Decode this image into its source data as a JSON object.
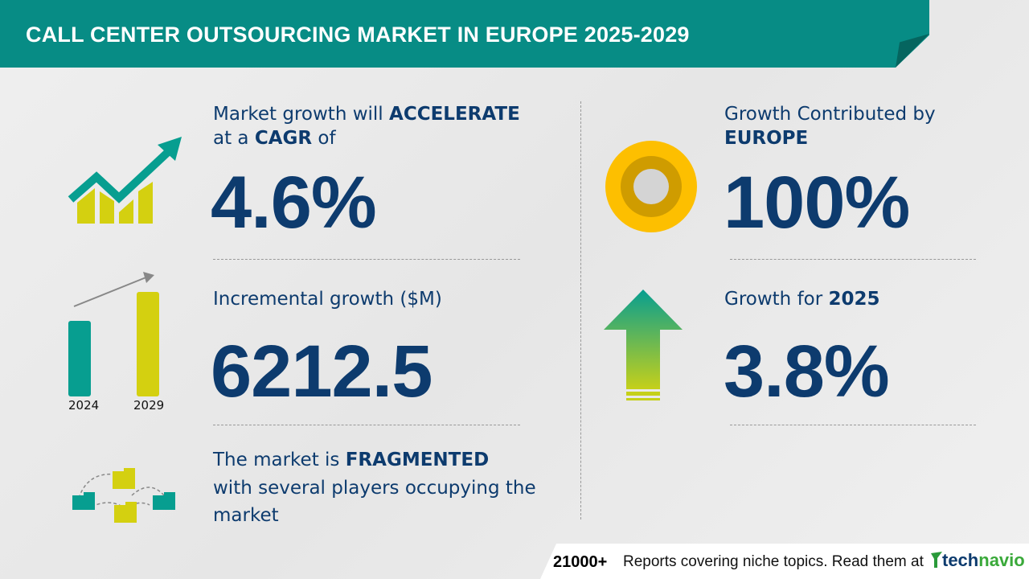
{
  "header": {
    "title": "CALL CENTER OUTSOURCING MARKET IN EUROPE 2025-2029"
  },
  "cagr": {
    "line1_pre": "Market growth will ",
    "line1_bold": "ACCELERATE",
    "line2_pre": "at a ",
    "line2_bold": "CAGR",
    "line2_post": " of",
    "value": "4.6%"
  },
  "incremental": {
    "label": "Incremental growth ($M)",
    "value": "6212.5",
    "bar_years": [
      "2024",
      "2029"
    ]
  },
  "market": {
    "line1_pre": "The market is ",
    "line1_bold": "FRAGMENTED",
    "line2": "with several players occupying the",
    "line3": "market"
  },
  "region": {
    "line1": "Growth Contributed by",
    "line2": "EUROPE",
    "value": "100%"
  },
  "growth_year": {
    "label_pre": "Growth for ",
    "year": "2025",
    "value": "3.8%"
  },
  "footer": {
    "count": "21000+",
    "text": "Reports covering niche topics. Read them at",
    "logo_tech": "tech",
    "logo_navio": "navio"
  },
  "colors": {
    "teal": "#078c85",
    "navy": "#0d3b6e",
    "yellow": "#d4d010",
    "gold": "#fdbf00"
  }
}
